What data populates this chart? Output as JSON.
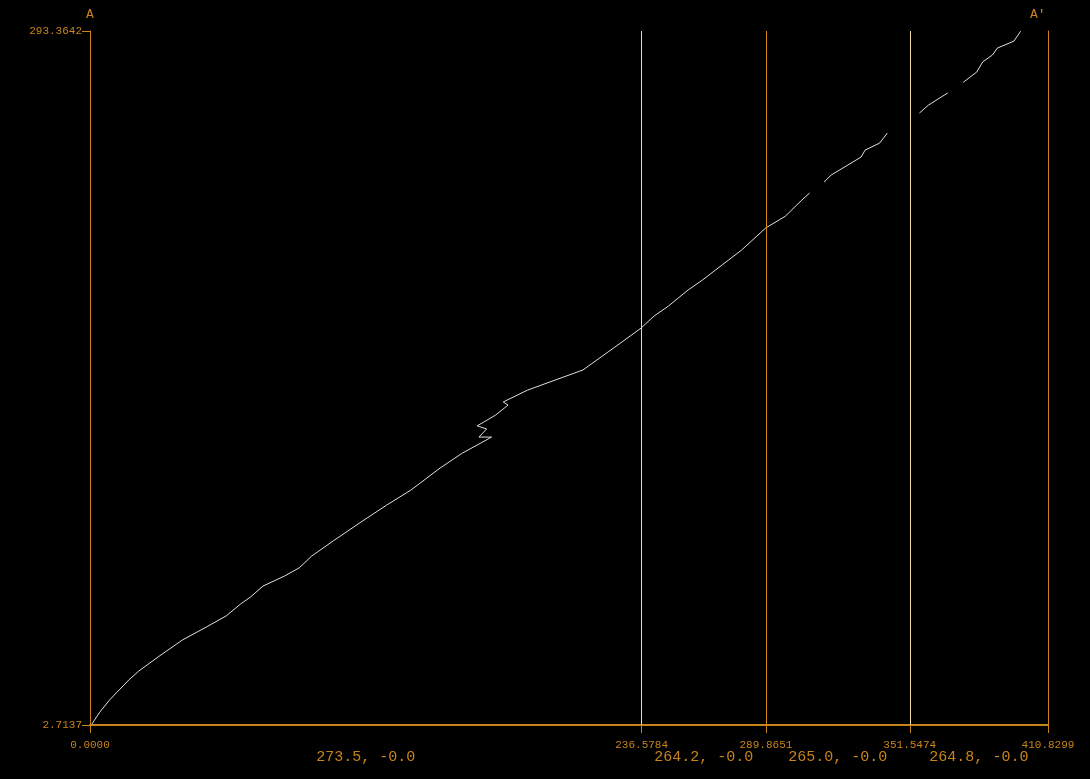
{
  "chart_data": {
    "type": "line",
    "annotations": [
      "A",
      "A'",
      "273.5, -0.0",
      "264.2, -0.0",
      "265.0, -0.0",
      "264.8, -0.0"
    ],
    "series": [
      {
        "color": "#e0e0e0",
        "x": [
          0.8,
          4.2,
          8.3,
          12.5,
          16.7,
          20.9,
          29.2,
          39.6,
          50.0,
          58.4,
          64.6,
          68.8,
          74.2,
          83.4,
          89.7,
          95.1,
          104.3,
          116.8,
          127.2,
          137.6,
          150.1,
          159.7,
          167.6,
          172.2,
          166.8,
          170.1,
          166.0,
          168.9,
          173.9,
          179.3,
          177.2,
          187.7,
          211.4,
          228.1,
          236.4,
          241.9,
          248.1,
          256.5,
          262.7,
          271.1,
          279.4,
          289.8,
          298.2,
          305.3,
          308.6,
          311.7,
          314.8,
          317.8,
          330.7,
          332.4,
          338.6,
          341.9,
          348.8,
          355.7,
          359.5,
          367.8,
          371.2,
          374.5,
          380.3,
          382.8,
          387.0,
          389.1,
          396.2,
          399.1
        ],
        "values": [
          3.1,
          8.1,
          13.1,
          17.4,
          21.6,
          25.3,
          31.2,
          38.3,
          43.8,
          48.4,
          53.4,
          56.3,
          60.9,
          65.1,
          68.5,
          73.5,
          79.8,
          88.1,
          94.8,
          101.1,
          110.3,
          116.6,
          120.8,
          123.3,
          123.3,
          126.7,
          128.0,
          129.6,
          132.5,
          136.7,
          138.0,
          143.0,
          151.4,
          163.1,
          169.0,
          174.0,
          178.2,
          184.9,
          189.1,
          195.4,
          201.6,
          210.9,
          215.8,
          222.6,
          225.5,
          null,
          230.1,
          233.0,
          240.6,
          243.5,
          246.4,
          250.6,
          null,
          259.0,
          262.3,
          267.4,
          null,
          271.9,
          276.2,
          280.4,
          283.3,
          286.2,
          289.1,
          293.3
        ]
      }
    ],
    "xlim": [
      0,
      410.8299
    ],
    "xticks": [
      {
        "value": 0,
        "label": "0.0000"
      },
      236.5784,
      289.8651,
      351.5474,
      410.8299
    ],
    "ylim": [
      2.7137,
      293.3642
    ],
    "yticks": [
      2.7137,
      293.3642
    ],
    "ref_lines": [
      {
        "axis": "x",
        "value": 236.5784,
        "color": "#f0dca0"
      },
      {
        "axis": "x",
        "value": 289.8651,
        "color": "#d08a1a"
      },
      {
        "axis": "x",
        "value": 351.5474,
        "color": "#f0dca0"
      }
    ],
    "grid": false,
    "marker": "none",
    "line_style": "solid"
  }
}
